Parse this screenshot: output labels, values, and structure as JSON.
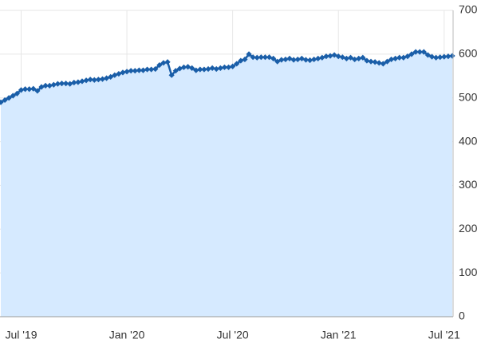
{
  "chart_data": {
    "type": "area",
    "categories": [
      null,
      null,
      null,
      null,
      null,
      "Jul '19",
      null,
      null,
      null,
      null,
      null,
      null,
      null,
      null,
      null,
      null,
      null,
      null,
      null,
      null,
      null,
      null,
      null,
      null,
      null,
      null,
      null,
      null,
      null,
      null,
      null,
      "Jan '20",
      null,
      null,
      null,
      null,
      null,
      null,
      null,
      null,
      null,
      null,
      null,
      null,
      null,
      null,
      null,
      null,
      null,
      null,
      null,
      null,
      null,
      null,
      null,
      null,
      null,
      "Jul '20",
      null,
      null,
      null,
      null,
      null,
      null,
      null,
      null,
      null,
      null,
      null,
      null,
      null,
      null,
      null,
      null,
      null,
      null,
      null,
      null,
      null,
      null,
      null,
      null,
      null,
      "Jan '21",
      null,
      null,
      null,
      null,
      null,
      null,
      null,
      null,
      null,
      null,
      null,
      null,
      null,
      null,
      null,
      null,
      null,
      null,
      null,
      null,
      null,
      null,
      null,
      null,
      null,
      "Jul '21",
      null,
      null
    ],
    "values": [
      490,
      495,
      500,
      505,
      510,
      518,
      520,
      520,
      521,
      516,
      525,
      528,
      528,
      530,
      532,
      533,
      533,
      532,
      535,
      536,
      538,
      540,
      542,
      541,
      542,
      543,
      545,
      548,
      552,
      555,
      558,
      560,
      562,
      562,
      563,
      563,
      565,
      565,
      566,
      575,
      580,
      582,
      552,
      562,
      567,
      570,
      571,
      568,
      563,
      565,
      565,
      566,
      568,
      566,
      568,
      570,
      570,
      572,
      578,
      585,
      588,
      600,
      593,
      592,
      593,
      593,
      593,
      590,
      583,
      587,
      588,
      590,
      587,
      588,
      590,
      587,
      586,
      588,
      590,
      592,
      595,
      596,
      598,
      595,
      593,
      590,
      592,
      588,
      590,
      592,
      585,
      583,
      582,
      580,
      578,
      583,
      588,
      590,
      592,
      592,
      595,
      600,
      605,
      605,
      605,
      598,
      594,
      592,
      593,
      594,
      595,
      596
    ],
    "color": "#1a5ea8",
    "fill": "#d6eaff",
    "ylim": [
      0,
      700
    ],
    "yticks": [
      0,
      100,
      200,
      300,
      400,
      500,
      600,
      700
    ],
    "grid": true
  }
}
